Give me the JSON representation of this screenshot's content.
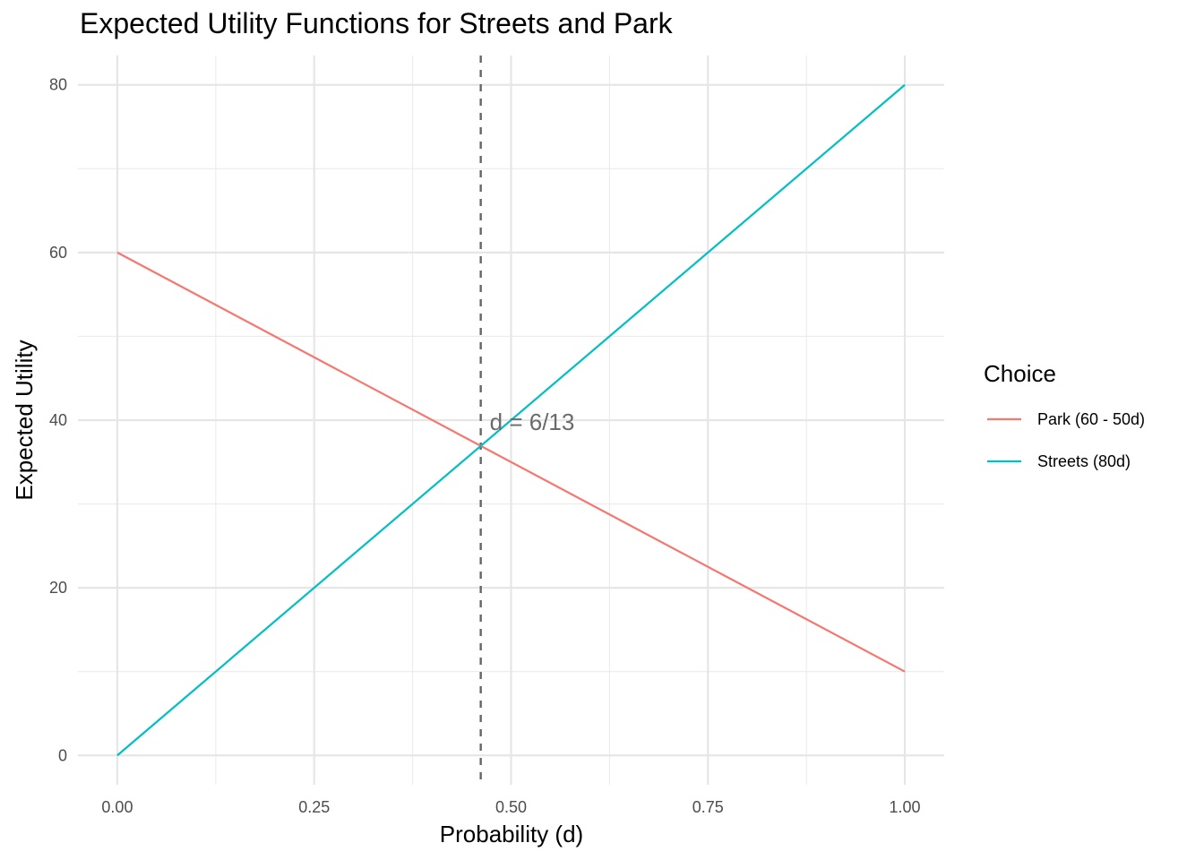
{
  "chart_data": {
    "type": "line",
    "title": "Expected Utility Functions for Streets and Park",
    "xlabel": "Probability (d)",
    "ylabel": "Expected Utility",
    "xlim": [
      -0.05,
      1.05
    ],
    "ylim": [
      -3.5,
      83.5
    ],
    "x_ticks": [
      0,
      0.25,
      0.5,
      0.75,
      1
    ],
    "x_tick_labels": [
      "0.00",
      "0.25",
      "0.50",
      "0.75",
      "1.00"
    ],
    "x_minor_ticks": [
      0.125,
      0.375,
      0.625,
      0.875
    ],
    "y_ticks": [
      0,
      20,
      40,
      60,
      80
    ],
    "y_tick_labels": [
      "0",
      "20",
      "40",
      "60",
      "80"
    ],
    "y_minor_ticks": [
      10,
      30,
      50,
      70
    ],
    "grid": true,
    "legend": {
      "title": "Choice",
      "placement": "right"
    },
    "series": [
      {
        "name": "Park (60 - 50d)",
        "color": "#f8766d",
        "x": [
          0,
          1
        ],
        "y": [
          60,
          10
        ]
      },
      {
        "name": "Streets (80d)",
        "color": "#00bfc4",
        "x": [
          0,
          1
        ],
        "y": [
          0,
          80
        ]
      }
    ],
    "vline": {
      "x": 0.4615,
      "color": "#666666",
      "style": "dashed"
    },
    "annotation": {
      "text": "d = 6/13",
      "x": 0.4615,
      "y": 40,
      "color": "#6b6b6b"
    }
  }
}
